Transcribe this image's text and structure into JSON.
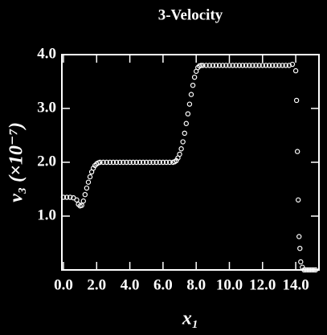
{
  "chart_data": {
    "type": "scatter",
    "title": "3-Velocity",
    "xlabel": "x₁",
    "ylabel": "v₃ (×10⁻⁷)",
    "xlim": [
      0,
      15.4
    ],
    "ylim": [
      0,
      4
    ],
    "xticks": [
      {
        "value": 0,
        "label": "0.0"
      },
      {
        "value": 2,
        "label": "2.0"
      },
      {
        "value": 4,
        "label": "4.0"
      },
      {
        "value": 6,
        "label": "6.0"
      },
      {
        "value": 8,
        "label": "8.0"
      },
      {
        "value": 10,
        "label": "10.0"
      },
      {
        "value": 12,
        "label": "12.0"
      },
      {
        "value": 14,
        "label": "14.0"
      }
    ],
    "yticks": [
      {
        "value": 1,
        "label": "1.0"
      },
      {
        "value": 2,
        "label": "2.0"
      },
      {
        "value": 3,
        "label": "3.0"
      },
      {
        "value": 4,
        "label": "4.0"
      }
    ],
    "color": "#ffffff",
    "x": [
      0,
      0.2,
      0.4,
      0.6,
      0.8,
      0.9,
      1.0,
      1.1,
      1.2,
      1.3,
      1.4,
      1.5,
      1.6,
      1.7,
      1.8,
      1.9,
      2.0,
      2.1,
      2.2,
      2.4,
      2.6,
      2.8,
      3.0,
      3.2,
      3.4,
      3.6,
      3.8,
      4.0,
      4.2,
      4.4,
      4.6,
      4.8,
      5.0,
      5.2,
      5.4,
      5.6,
      5.8,
      6.0,
      6.2,
      6.4,
      6.6,
      6.7,
      6.8,
      6.9,
      7.0,
      7.1,
      7.2,
      7.3,
      7.4,
      7.5,
      7.6,
      7.7,
      7.8,
      7.9,
      8.0,
      8.1,
      8.2,
      8.3,
      8.4,
      8.6,
      8.8,
      9.0,
      9.2,
      9.4,
      9.6,
      9.8,
      10.0,
      10.2,
      10.4,
      10.6,
      10.8,
      11.0,
      11.2,
      11.4,
      11.6,
      11.8,
      12.0,
      12.2,
      12.4,
      12.6,
      12.8,
      13.0,
      13.2,
      13.4,
      13.6,
      13.8,
      14.0,
      14.05,
      14.1,
      14.15,
      14.2,
      14.25,
      14.3,
      14.4,
      14.5,
      14.6,
      14.7,
      14.8,
      14.9,
      15.0,
      15.1,
      15.2
    ],
    "values": [
      1.35,
      1.35,
      1.35,
      1.34,
      1.3,
      1.22,
      1.19,
      1.2,
      1.28,
      1.4,
      1.52,
      1.63,
      1.73,
      1.82,
      1.89,
      1.94,
      1.97,
      1.99,
      2.0,
      2.0,
      2.0,
      2.0,
      2.0,
      2.0,
      2.0,
      2.0,
      2.0,
      2.0,
      2.0,
      2.0,
      2.0,
      2.0,
      2.0,
      2.0,
      2.0,
      2.0,
      2.0,
      2.0,
      2.0,
      2.0,
      2.0,
      2.01,
      2.03,
      2.08,
      2.15,
      2.25,
      2.38,
      2.54,
      2.72,
      2.9,
      3.08,
      3.26,
      3.43,
      3.58,
      3.69,
      3.76,
      3.79,
      3.8,
      3.8,
      3.8,
      3.8,
      3.8,
      3.8,
      3.8,
      3.8,
      3.8,
      3.8,
      3.8,
      3.8,
      3.8,
      3.8,
      3.8,
      3.8,
      3.8,
      3.8,
      3.8,
      3.8,
      3.8,
      3.8,
      3.8,
      3.8,
      3.8,
      3.8,
      3.8,
      3.8,
      3.82,
      3.7,
      3.15,
      2.2,
      1.3,
      0.62,
      0.4,
      0.15,
      0.05,
      0,
      0,
      0,
      0,
      0,
      0,
      0,
      0
    ]
  }
}
